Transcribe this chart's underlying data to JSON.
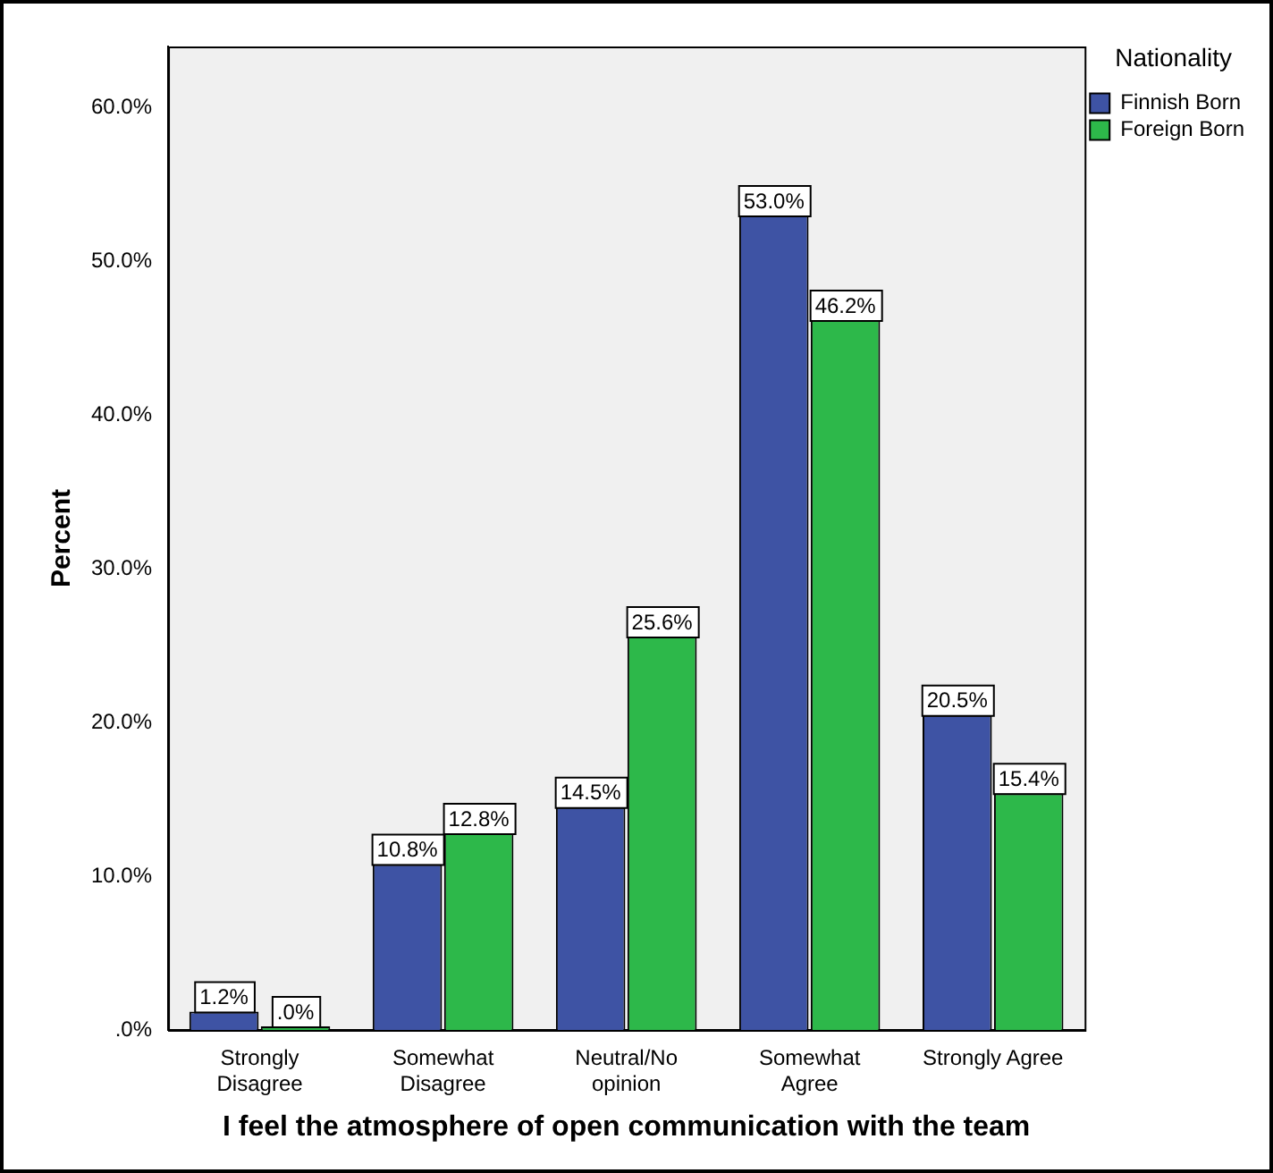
{
  "chart_data": {
    "type": "bar",
    "xlabel": "I feel the atmosphere of open communication with the team",
    "ylabel": "Percent",
    "legend_title": "Nationality",
    "legend": "top right",
    "grid": false,
    "categories": [
      "Strongly Disagree",
      "Somewhat Disagree",
      "Neutral/No opinion",
      "Somewhat Agree",
      "Strongly Agree"
    ],
    "series": [
      {
        "name": "Finnish Born",
        "color": "#3e53a4",
        "values": [
          1.2,
          10.8,
          14.5,
          53.0,
          20.5
        ],
        "value_labels": [
          "1.2%",
          "10.8%",
          "14.5%",
          "53.0%",
          "20.5%"
        ]
      },
      {
        "name": "Foreign Born",
        "color": "#2db84a",
        "values": [
          0,
          12.8,
          25.6,
          46.2,
          15.4
        ],
        "value_labels": [
          ".0%",
          "12.8%",
          "25.6%",
          "46.2%",
          "15.4%"
        ]
      }
    ],
    "ylim": [
      0,
      64
    ],
    "yticks": [
      {
        "value": 0,
        "label": ".0%"
      },
      {
        "value": 10,
        "label": "10.0%"
      },
      {
        "value": 20,
        "label": "20.0%"
      },
      {
        "value": 30,
        "label": "30.0%"
      },
      {
        "value": 40,
        "label": "40.0%"
      },
      {
        "value": 50,
        "label": "50.0%"
      },
      {
        "value": 60,
        "label": "60.0%"
      }
    ]
  }
}
